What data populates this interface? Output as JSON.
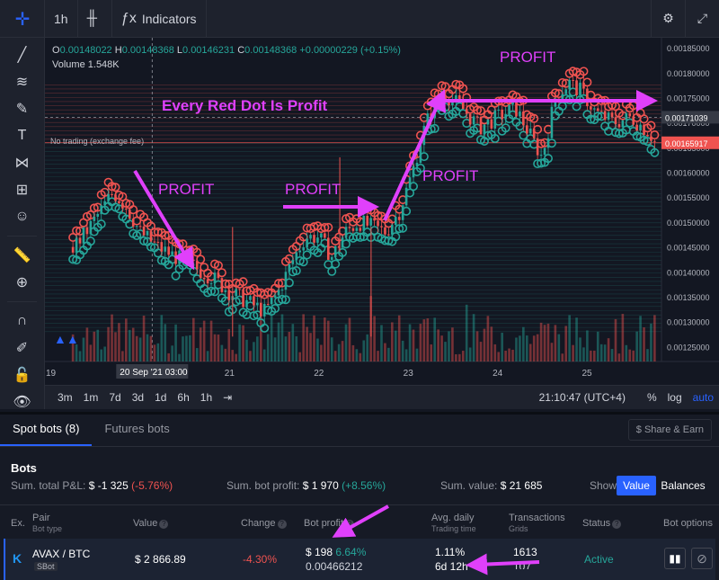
{
  "toolbar": {
    "interval": "1h",
    "indicators_label": "Indicators"
  },
  "legend": {
    "o_label": "O",
    "o_value": "0.00148022",
    "h_label": "H",
    "h_value": "0.00148368",
    "l_label": "L",
    "l_value": "0.00146231",
    "c_label": "C",
    "c_value": "0.00148368",
    "change": "+0.00000229 (+0.15%)",
    "volume_label": "Volume",
    "volume_value": "1.548K"
  },
  "no_trading_label": "No trading (exchange fee)",
  "price_axis": {
    "ticks": [
      "0.00185000",
      "0.00180000",
      "0.00175000",
      "0.00170000",
      "0.00165000",
      "0.00160000",
      "0.00155000",
      "0.00150000",
      "0.00145000",
      "0.00140000",
      "0.00135000",
      "0.00130000",
      "0.00125000"
    ],
    "current_price": "0.00171039",
    "marker_price": "0.00165917"
  },
  "time_axis": {
    "ticks": [
      "19",
      "21",
      "22",
      "23",
      "24",
      "25"
    ],
    "crosshair_label": "20 Sep '21   03:00"
  },
  "chart_bottom": {
    "ranges": [
      "3m",
      "1m",
      "7d",
      "3d",
      "1d",
      "6h",
      "1h"
    ],
    "clock": "21:10:47 (UTC+4)",
    "percent": "%",
    "log": "log",
    "auto": "auto"
  },
  "chart_data": {
    "type": "candlestick",
    "pair": "AVAX/BTC",
    "interval": "1h",
    "ylim": [
      0.00122,
      0.00187
    ],
    "x_days": [
      "19",
      "20",
      "21",
      "22",
      "23",
      "24",
      "25"
    ],
    "close_path": [
      [
        19.25,
        0.00145
      ],
      [
        19.4,
        0.00148
      ],
      [
        19.55,
        0.00152
      ],
      [
        19.7,
        0.00156
      ],
      [
        19.85,
        0.00153
      ],
      [
        20.0,
        0.00148
      ],
      [
        20.2,
        0.00145
      ],
      [
        20.4,
        0.00143
      ],
      [
        20.6,
        0.00141
      ],
      [
        20.8,
        0.00139
      ],
      [
        21.0,
        0.00136
      ],
      [
        21.2,
        0.00134
      ],
      [
        21.4,
        0.00132
      ],
      [
        21.55,
        0.00136
      ],
      [
        21.7,
        0.00142
      ],
      [
        21.85,
        0.00147
      ],
      [
        22.0,
        0.00147
      ],
      [
        22.15,
        0.00143
      ],
      [
        22.3,
        0.00148
      ],
      [
        22.45,
        0.0015
      ],
      [
        22.6,
        0.00149
      ],
      [
        22.75,
        0.00148
      ],
      [
        22.9,
        0.00152
      ],
      [
        23.05,
        0.0016
      ],
      [
        23.15,
        0.00167
      ],
      [
        23.25,
        0.00172
      ],
      [
        23.4,
        0.00176
      ],
      [
        23.6,
        0.00173
      ],
      [
        23.8,
        0.00169
      ],
      [
        24.0,
        0.00171
      ],
      [
        24.2,
        0.00173
      ],
      [
        24.35,
        0.00168
      ],
      [
        24.5,
        0.00163
      ],
      [
        24.65,
        0.00175
      ],
      [
        24.8,
        0.00178
      ],
      [
        24.95,
        0.00176
      ],
      [
        25.1,
        0.00172
      ],
      [
        25.3,
        0.0017
      ],
      [
        25.5,
        0.00171
      ],
      [
        25.7,
        0.00168
      ],
      [
        25.8,
        0.00165
      ]
    ]
  },
  "annotations": {
    "headline": "Every Red Dot Is Profit",
    "profit": "PROFIT"
  },
  "panel": {
    "tabs": [
      "Spot bots (8)",
      "Futures bots"
    ],
    "share": "$ Share & Earn",
    "title": "Bots",
    "sum_pnl_label": "Sum. total P&L:",
    "sum_pnl_value": "$ -1 325",
    "sum_pnl_pct": "(-5.76%)",
    "sum_profit_label": "Sum. bot profit:",
    "sum_profit_value": "$ 1 970",
    "sum_profit_pct": "(+8.56%)",
    "sum_value_label": "Sum. value:",
    "sum_value_value": "$ 21 685",
    "show_label": "Show",
    "btn_value": "Value",
    "btn_balances": "Balances",
    "columns": {
      "ex": "Ex.",
      "pair": "Pair",
      "pair_sub": "Bot type",
      "value": "Value",
      "change": "Change",
      "bot_profit": "Bot profit",
      "avg_daily": "Avg. daily",
      "avg_daily_sub": "Trading time",
      "transactions": "Transactions",
      "transactions_sub": "Grids",
      "status": "Status",
      "bot_options": "Bot options"
    },
    "row": {
      "pair": "AVAX / BTC",
      "bot_type": "SBot",
      "value": "$ 2 866.89",
      "change": "-4.30%",
      "profit_usd": "$ 198",
      "profit_pct": "6.64%",
      "profit_btc": "0.00466212",
      "avg_daily": "1.11%",
      "trading_time": "6d 12h",
      "transactions": "1613",
      "grids": "107",
      "status": "Active"
    }
  },
  "colors": {
    "up": "#26a69a",
    "down": "#ef5350",
    "annotation": "#e040fb",
    "accent": "#2962ff"
  }
}
